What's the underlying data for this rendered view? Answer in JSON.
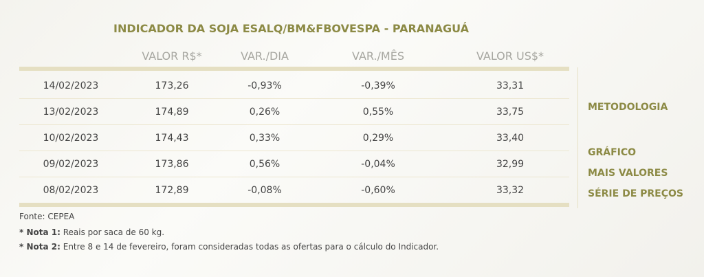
{
  "title": "INDICADOR DA SOJA ESALQ/BM&FBOVESPA - PARANAGUÁ",
  "table": {
    "headers": [
      "VALOR R$*",
      "VAR./DIA",
      "VAR./MÊS",
      "VALOR US$*"
    ],
    "rows": [
      [
        "14/02/2023",
        "173,26",
        "-0,93%",
        "-0,39%",
        "33,31"
      ],
      [
        "13/02/2023",
        "174,89",
        "0,26%",
        "0,55%",
        "33,75"
      ],
      [
        "10/02/2023",
        "174,43",
        "0,33%",
        "0,29%",
        "33,40"
      ],
      [
        "09/02/2023",
        "173,86",
        "0,56%",
        "-0,04%",
        "32,99"
      ],
      [
        "08/02/2023",
        "172,89",
        "-0,08%",
        "-0,60%",
        "33,32"
      ]
    ]
  },
  "links": [
    "METODOLOGIA",
    "GRÁFICO",
    "MAIS VALORES",
    "SÉRIE DE PREÇOS"
  ],
  "footer": {
    "source": "Fonte: CEPEA",
    "notes": [
      {
        "label": "* Nota 1:",
        "text": "Reais por saca de 60 kg."
      },
      {
        "label": "* Nota 2:",
        "text": "Entre 8 e 14 de fevereiro, foram consideradas todas as ofertas para o cálculo do Indicador."
      }
    ]
  }
}
